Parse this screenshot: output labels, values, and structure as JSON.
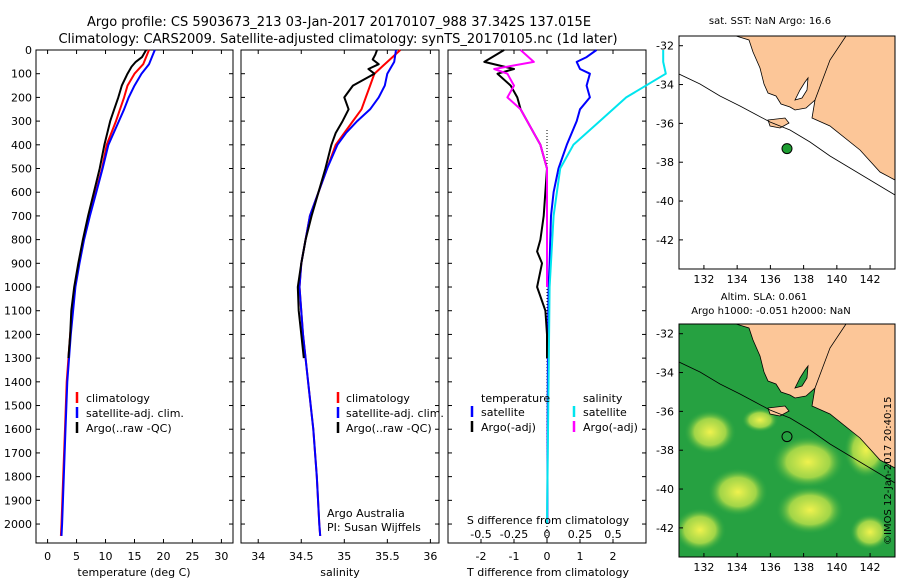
{
  "header": {
    "line1": "Argo profile: CS 5903673_213 03-Jan-2017 20170107_988 37.342S 137.015E",
    "line2": "Climatology: CARS2009. Satellite-adjusted climatology: synTS_20170105.nc (1d later)"
  },
  "colors": {
    "climatology": "#ff0000",
    "satellite": "#0000ff",
    "argo": "#000000",
    "satellite_s": "#00e5ee",
    "argo_s": "#ff00ff",
    "land": "#fcc698",
    "ocean_low": "#1fa043",
    "ocean_high": "#e8f04a",
    "float_marker": "#1e9e32"
  },
  "chart_data": [
    {
      "type": "line",
      "xlabel": "temperature (deg C)",
      "ylabel": "",
      "xlim": [
        -2,
        32
      ],
      "ylim": [
        2080,
        0
      ],
      "xticks": [
        0,
        5,
        10,
        15,
        20,
        25,
        30
      ],
      "yticks": [
        0,
        100,
        200,
        300,
        400,
        500,
        600,
        700,
        800,
        900,
        1000,
        1100,
        1200,
        1300,
        1400,
        1500,
        1600,
        1700,
        1800,
        1900,
        2000
      ],
      "legend": [
        "climatology",
        "satellite-adj. clim.",
        "Argo(..raw -QC)"
      ],
      "series": [
        {
          "name": "climatology",
          "color": "#ff0000",
          "depth": [
            0,
            30,
            60,
            100,
            150,
            200,
            250,
            300,
            400,
            500,
            600,
            700,
            800,
            900,
            1000,
            1200,
            1400,
            1600,
            1800,
            2000,
            2050
          ],
          "values": [
            17.5,
            17,
            16.5,
            15,
            13.8,
            13.2,
            12.5,
            11.8,
            10.2,
            9.4,
            8.3,
            7.2,
            6.2,
            5.4,
            4.7,
            3.9,
            3.3,
            3,
            2.7,
            2.4,
            2.3
          ]
        },
        {
          "name": "satellite-adj. clim.",
          "color": "#0000ff",
          "depth": [
            0,
            30,
            60,
            100,
            150,
            200,
            250,
            300,
            400,
            500,
            600,
            700,
            800,
            900,
            1000,
            1200,
            1400,
            1600,
            1800,
            2000,
            2050
          ],
          "values": [
            18.5,
            18,
            17.5,
            16.2,
            15,
            14,
            13.2,
            12.3,
            10.5,
            9.5,
            8.4,
            7.3,
            6.3,
            5.5,
            4.8,
            4,
            3.4,
            3.1,
            2.8,
            2.5,
            2.4
          ]
        },
        {
          "name": "Argo(..raw -QC)",
          "color": "#000000",
          "depth": [
            0,
            30,
            50,
            70,
            100,
            150,
            200,
            250,
            300,
            350,
            400,
            500,
            600,
            700,
            800,
            900,
            1000,
            1100,
            1200,
            1300
          ],
          "values": [
            17,
            16.3,
            15.2,
            14.5,
            13.8,
            12.8,
            12.2,
            11.5,
            10.8,
            10.3,
            9.8,
            9,
            8,
            7,
            6.1,
            5.3,
            4.6,
            4.1,
            3.9,
            3.6
          ]
        }
      ]
    },
    {
      "type": "line",
      "xlabel": "salinity",
      "ylabel": "",
      "xlim": [
        33.8,
        36.1
      ],
      "ylim": [
        2080,
        0
      ],
      "xticks": [
        34,
        34.5,
        35,
        35.5,
        36
      ],
      "legend": [
        "climatology",
        "satellite-adj. clim.",
        "Argo(..raw -QC)"
      ],
      "annotations": [
        "Argo Australia",
        "PI: Susan Wijffels"
      ],
      "series": [
        {
          "name": "climatology",
          "color": "#ff0000",
          "depth": [
            0,
            50,
            100,
            150,
            200,
            250,
            300,
            350,
            400,
            500,
            600,
            700,
            800,
            900,
            1000,
            1200,
            1400,
            1600,
            1800,
            2000,
            2050
          ],
          "values": [
            35.65,
            35.5,
            35.35,
            35.3,
            35.25,
            35.2,
            35.1,
            35.0,
            34.9,
            34.8,
            34.7,
            34.6,
            34.55,
            34.5,
            34.48,
            34.52,
            34.58,
            34.64,
            34.68,
            34.71,
            34.72
          ]
        },
        {
          "name": "satellite-adj. clim.",
          "color": "#0000ff",
          "depth": [
            0,
            50,
            100,
            150,
            200,
            250,
            300,
            350,
            400,
            500,
            600,
            700,
            800,
            900,
            1000,
            1200,
            1400,
            1600,
            1800,
            2000,
            2050
          ],
          "values": [
            35.6,
            35.58,
            35.5,
            35.47,
            35.4,
            35.3,
            35.15,
            35.02,
            34.92,
            34.8,
            34.7,
            34.6,
            34.55,
            34.5,
            34.48,
            34.52,
            34.58,
            34.64,
            34.68,
            34.71,
            34.72
          ]
        },
        {
          "name": "Argo(..raw -QC)",
          "color": "#000000",
          "depth": [
            0,
            20,
            40,
            60,
            80,
            100,
            150,
            200,
            250,
            300,
            350,
            400,
            500,
            600,
            700,
            800,
            900,
            1000,
            1100,
            1200,
            1300
          ],
          "values": [
            35.38,
            35.36,
            35.33,
            35.4,
            35.28,
            35.35,
            35.1,
            35.0,
            35.05,
            34.98,
            34.9,
            34.85,
            34.78,
            34.7,
            34.62,
            34.55,
            34.5,
            34.46,
            34.47,
            34.5,
            34.53
          ]
        }
      ]
    },
    {
      "type": "line",
      "xlabel": "T difference from climatology",
      "x2label": "S difference from climatology",
      "ylabel": "",
      "xlim": [
        -3,
        3
      ],
      "ylim": [
        2080,
        0
      ],
      "xticks": [
        -2,
        -1,
        0,
        1,
        2
      ],
      "x2ticks": [
        -0.5,
        -0.25,
        0,
        0.25,
        0.5
      ],
      "legend_headers": [
        "temperature",
        "salinity"
      ],
      "legend": [
        "satellite",
        "Argo(-adj)",
        "satellite",
        "Argo(-adj)"
      ],
      "series": [
        {
          "name": "satellite",
          "color": "#0000ff",
          "depth": [
            0,
            30,
            50,
            80,
            100,
            150,
            200,
            250,
            300,
            400,
            500,
            600,
            700,
            800,
            900,
            1000,
            1200,
            1500,
            2000
          ],
          "values": [
            1.5,
            1.2,
            0.9,
            1.0,
            1.3,
            1.2,
            1.3,
            1.0,
            0.9,
            0.6,
            0.35,
            0.2,
            0.12,
            0.1,
            0.08,
            0.05,
            0.03,
            0.02,
            0.01
          ]
        },
        {
          "name": "Argo(-adj)",
          "color": "#000000",
          "depth": [
            0,
            50,
            80,
            100,
            150,
            200,
            250,
            300,
            350,
            400,
            500,
            700,
            800,
            850,
            900,
            1000,
            1100,
            1200,
            1300
          ],
          "values": [
            -1.3,
            -1.9,
            -1.0,
            -1.5,
            -1.1,
            -0.9,
            -0.8,
            -0.6,
            -0.4,
            -0.2,
            0,
            -0.1,
            -0.2,
            -0.3,
            -0.15,
            -0.3,
            -0.05,
            0,
            0
          ]
        },
        {
          "name": "satellite",
          "color": "#00e5ee",
          "depth": [
            0,
            50,
            100,
            200,
            300,
            400,
            500,
            700,
            1000,
            1500,
            2000
          ],
          "values": [
            0.88,
            0.88,
            0.9,
            0.6,
            0.4,
            0.2,
            0.1,
            0.05,
            0.02,
            0.01,
            0.0
          ]
        },
        {
          "name": "Argo(-adj)",
          "color": "#ff00ff",
          "depth": [
            0,
            50,
            80,
            100,
            150,
            200,
            250,
            300,
            400,
            500,
            700,
            1000
          ],
          "values": [
            -0.2,
            -0.1,
            -0.4,
            -0.3,
            -0.25,
            -0.3,
            -0.2,
            -0.15,
            -0.05,
            0,
            0,
            0
          ]
        }
      ]
    },
    {
      "type": "map",
      "title": "sat. SST: NaN Argo: 16.6",
      "xlim": [
        130.5,
        143.5
      ],
      "ylim": [
        -43.5,
        -31.5
      ],
      "xticks": [
        132,
        134,
        136,
        138,
        140,
        142
      ],
      "yticks": [
        -32,
        -34,
        -36,
        -38,
        -40,
        -42
      ],
      "float": {
        "lon": 137.0,
        "lat": -37.3
      }
    },
    {
      "type": "map",
      "title_line1": "Altim. SLA: 0.061",
      "title_line2": "Argo h1000: -0.051 h2000: NaN",
      "xlim": [
        130.5,
        143.5
      ],
      "ylim": [
        -43.5,
        -31.5
      ],
      "xticks": [
        132,
        134,
        136,
        138,
        140,
        142
      ],
      "yticks": [
        -32,
        -34,
        -36,
        -38,
        -40,
        -42
      ],
      "float": {
        "lon": 137.0,
        "lat": -37.3
      },
      "credit": "©IMOS 12-Jan-2017 20:40:15"
    }
  ]
}
